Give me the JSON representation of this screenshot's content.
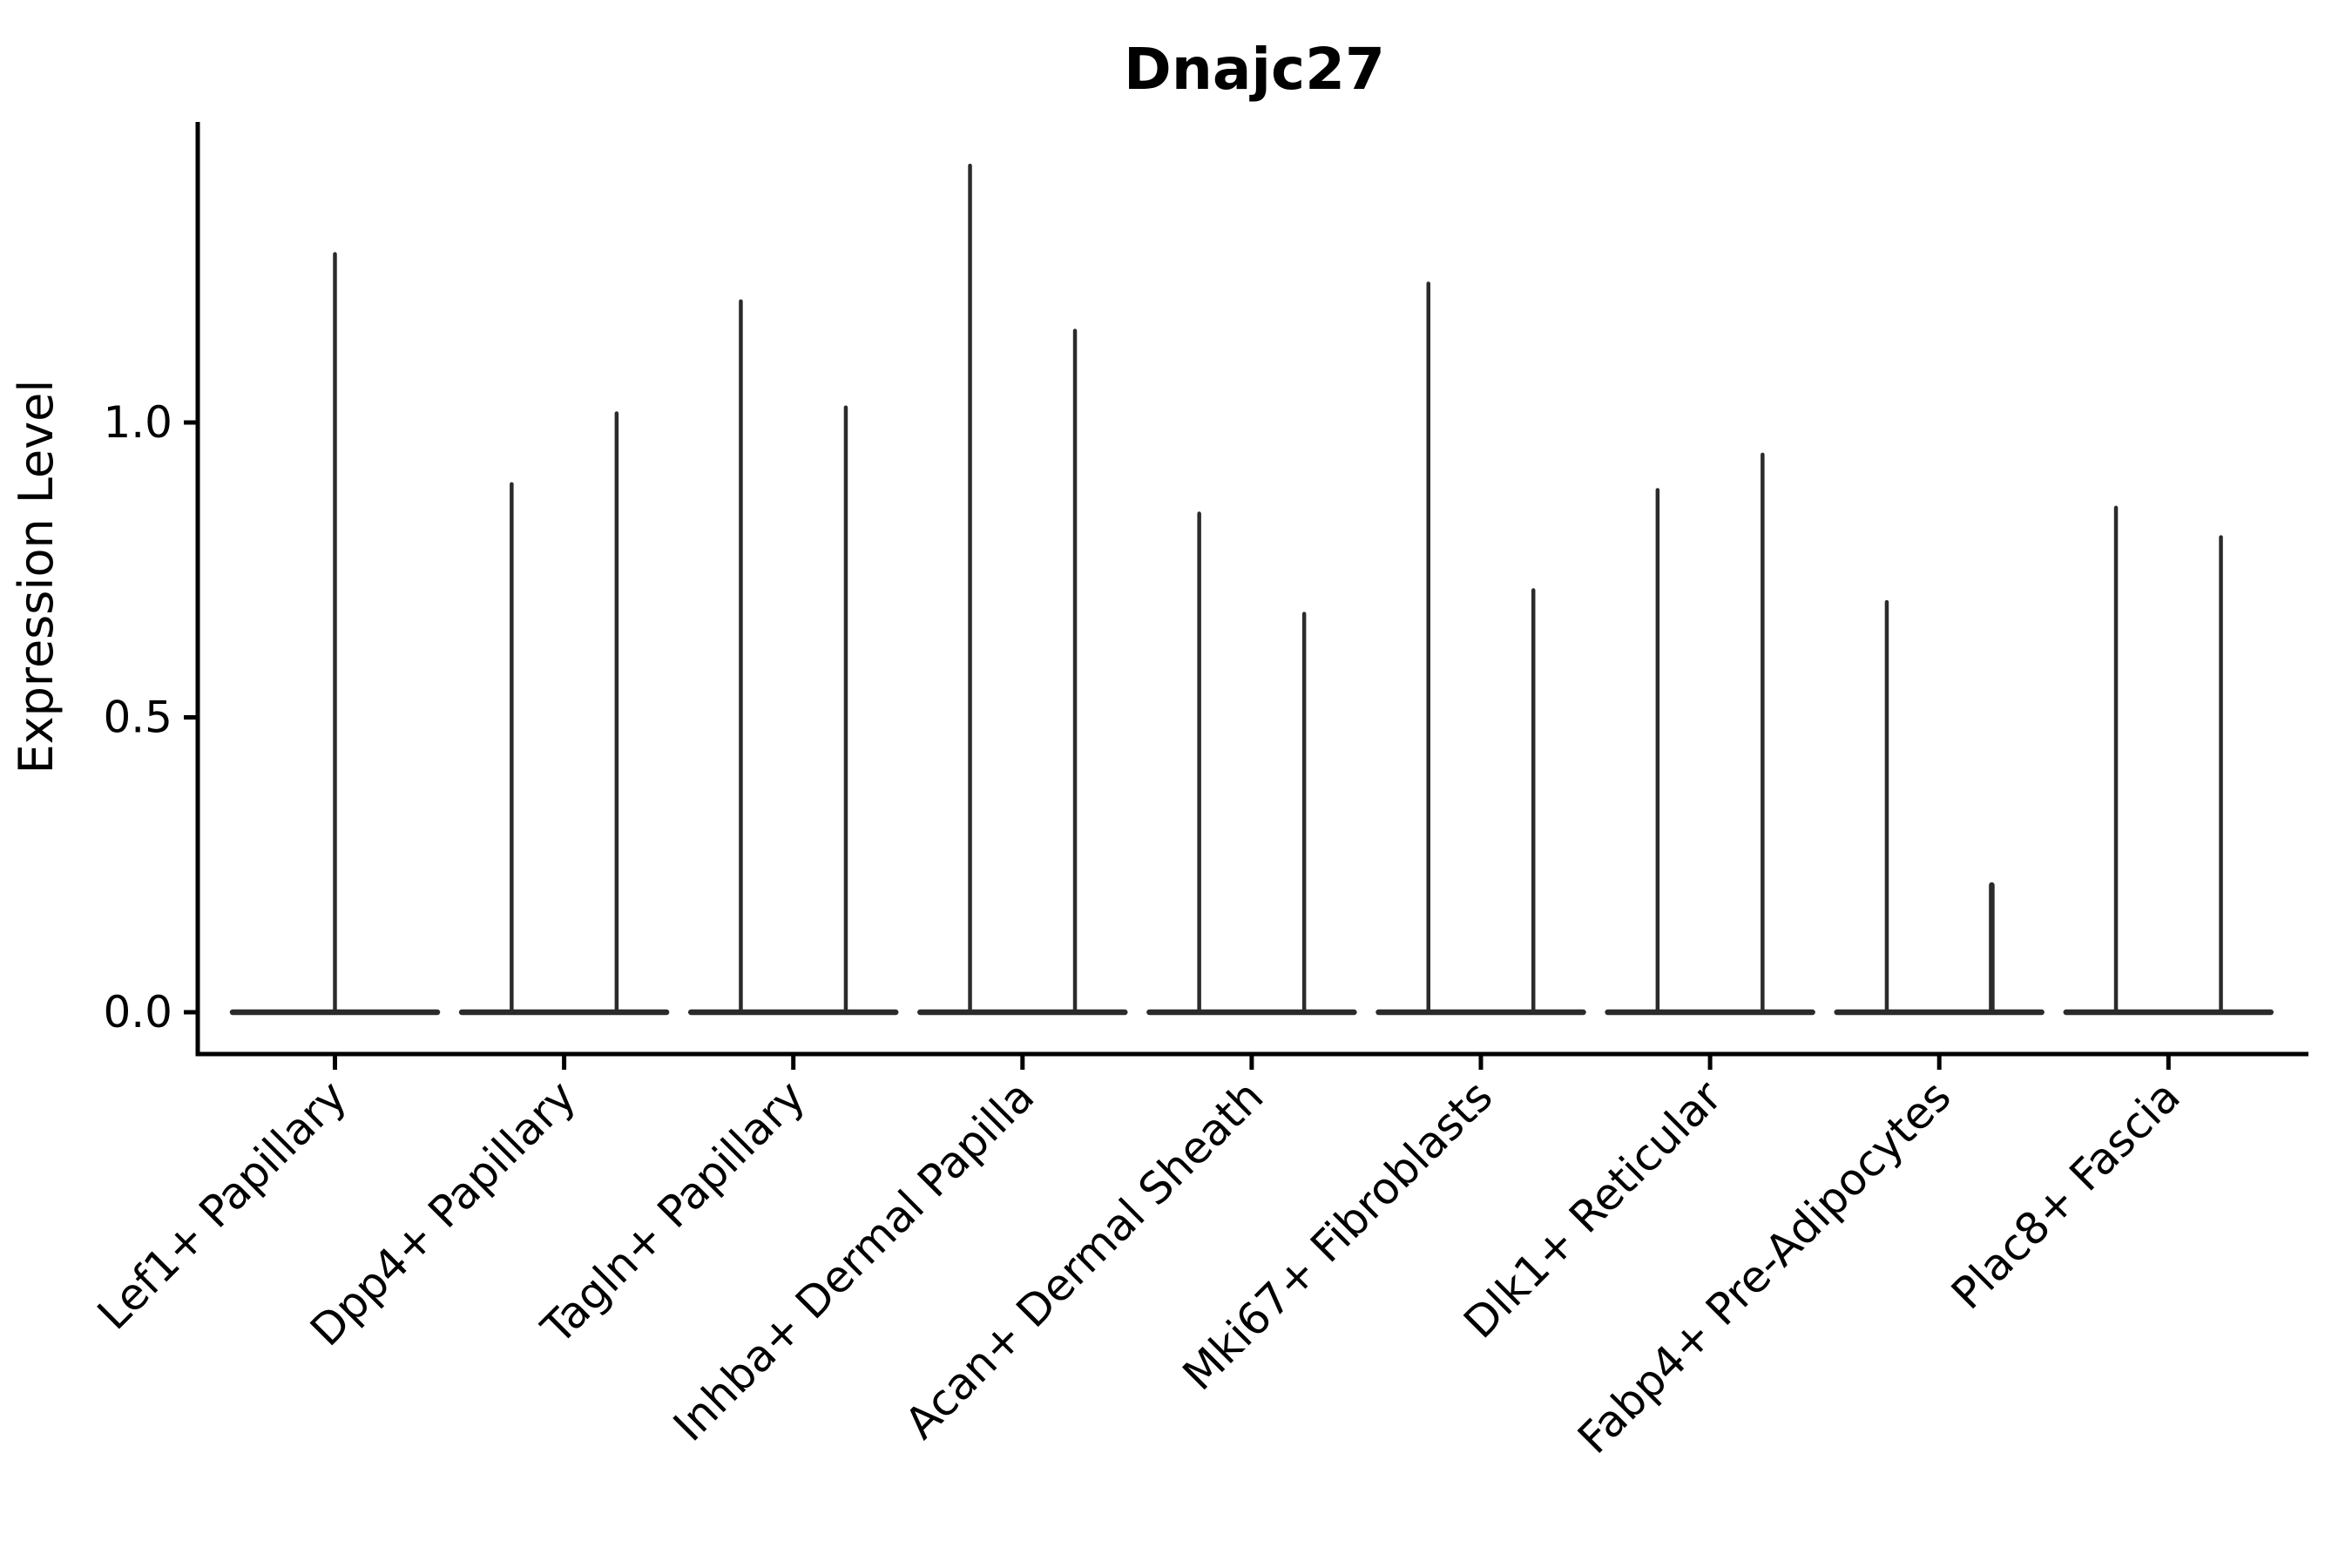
{
  "figure": {
    "title": "Dnajc27",
    "ylabel": "Expression Level"
  },
  "chart_data": {
    "type": "violin",
    "title": "Dnajc27",
    "xlabel": "",
    "ylabel": "Expression Level",
    "ylim": [
      -0.07,
      1.51
    ],
    "grid": false,
    "legend": "none",
    "yticks": [
      {
        "label": "0.0",
        "value": 0.0
      },
      {
        "label": "0.5",
        "value": 0.5
      },
      {
        "label": "1.0",
        "value": 1.0
      }
    ],
    "categories": [
      "Lef1+ Papillary",
      "Dpp4+ Papillary",
      "Tagln+ Papillary",
      "Inhba+ Dermal Papilla",
      "Acan+ Dermal Sheath",
      "Mki67+ Fibroblasts",
      "Dlk1+ Reticular",
      "Fabp4+ Pre-Adipocytes",
      "Plac8+ Fascia"
    ],
    "series": [
      {
        "category": "Lef1+ Papillary",
        "violins": [
          {
            "position": "center",
            "max": 1.29
          }
        ]
      },
      {
        "category": "Dpp4+ Papillary",
        "violins": [
          {
            "position": "left",
            "max": 0.9
          },
          {
            "position": "right",
            "max": 1.02
          }
        ]
      },
      {
        "category": "Tagln+ Papillary",
        "violins": [
          {
            "position": "left",
            "max": 1.21
          },
          {
            "position": "right",
            "max": 1.03
          }
        ]
      },
      {
        "category": "Inhba+ Dermal Papilla",
        "violins": [
          {
            "position": "left",
            "max": 1.44
          },
          {
            "position": "right",
            "max": 1.16
          }
        ]
      },
      {
        "category": "Acan+ Dermal Sheath",
        "violins": [
          {
            "position": "left",
            "max": 0.85
          },
          {
            "position": "right",
            "max": 0.68
          }
        ]
      },
      {
        "category": "Mki67+ Fibroblasts",
        "violins": [
          {
            "position": "left",
            "max": 1.24
          },
          {
            "position": "right",
            "max": 0.72
          }
        ]
      },
      {
        "category": "Dlk1+ Reticular",
        "violins": [
          {
            "position": "left",
            "max": 0.89
          },
          {
            "position": "right",
            "max": 0.95
          }
        ]
      },
      {
        "category": "Fabp4+ Pre-Adipocytes",
        "violins": [
          {
            "position": "left",
            "max": 0.7
          },
          {
            "position": "right",
            "max": 0.22,
            "thick": true
          }
        ]
      },
      {
        "category": "Plac8+ Fascia",
        "violins": [
          {
            "position": "left",
            "max": 0.86
          },
          {
            "position": "right",
            "max": 0.81
          }
        ]
      }
    ],
    "colors": {
      "violin_line": "#2b2b2b",
      "axis": "#000000",
      "background": "#ffffff",
      "text": "#000000"
    }
  }
}
